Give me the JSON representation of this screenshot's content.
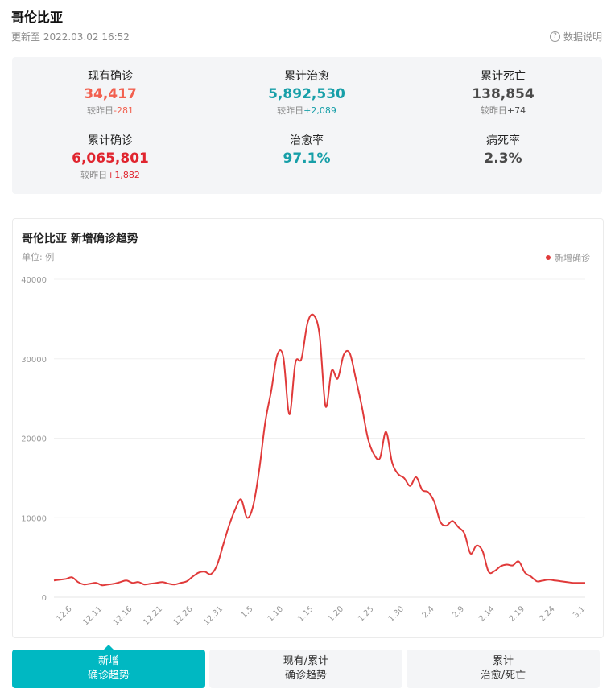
{
  "header": {
    "title": "哥伦比亚",
    "update_time": "更新至 2022.03.02 16:52",
    "help_label": "数据说明",
    "help_icon": "question-circle-icon"
  },
  "stats": [
    {
      "label": "现有确诊",
      "value": "34,417",
      "delta_prefix": "较昨日",
      "delta": "-281",
      "color": "#f2604f",
      "delta_color": "#f2604f"
    },
    {
      "label": "累计治愈",
      "value": "5,892,530",
      "delta_prefix": "较昨日",
      "delta": "+2,089",
      "color": "#179fa8",
      "delta_color": "#179fa8"
    },
    {
      "label": "累计死亡",
      "value": "138,854",
      "delta_prefix": "较昨日",
      "delta": "+74",
      "color": "#4a4a4a",
      "delta_color": "#4a4a4a"
    },
    {
      "label": "累计确诊",
      "value": "6,065,801",
      "delta_prefix": "较昨日",
      "delta": "+1,882",
      "color": "#e0252f",
      "delta_color": "#e0252f"
    },
    {
      "label": "治愈率",
      "value": "97.1%",
      "delta_prefix": "",
      "delta": "",
      "color": "#179fa8",
      "delta_color": "#179fa8"
    },
    {
      "label": "病死率",
      "value": "2.3%",
      "delta_prefix": "",
      "delta": "",
      "color": "#4a4a4a",
      "delta_color": "#4a4a4a"
    }
  ],
  "chart_panel": {
    "title": "哥伦比亚 新增确诊趋势",
    "unit": "单位: 例"
  },
  "chart_data": {
    "type": "line",
    "title": "哥伦比亚 新增确诊趋势",
    "ylabel": "单位: 例",
    "ylim": [
      0,
      40000
    ],
    "yticks": [
      "0",
      "10000",
      "20000",
      "30000",
      "40000"
    ],
    "xticks": [
      "12.6",
      "12.11",
      "12.16",
      "12.21",
      "12.26",
      "12.31",
      "1.5",
      "1.10",
      "1.15",
      "1.20",
      "1.25",
      "1.30",
      "2.4",
      "2.9",
      "2.14",
      "2.19",
      "2.24",
      "3.1"
    ],
    "grid": true,
    "legend_position": "top-right",
    "series": [
      {
        "name": "新增确诊",
        "color": "#e03a3a",
        "x": [
          "12.3",
          "12.4",
          "12.5",
          "12.6",
          "12.7",
          "12.8",
          "12.9",
          "12.10",
          "12.11",
          "12.12",
          "12.13",
          "12.14",
          "12.15",
          "12.16",
          "12.17",
          "12.18",
          "12.19",
          "12.20",
          "12.21",
          "12.22",
          "12.23",
          "12.24",
          "12.25",
          "12.26",
          "12.27",
          "12.28",
          "12.29",
          "12.30",
          "12.31",
          "1.1",
          "1.2",
          "1.3",
          "1.4",
          "1.5",
          "1.6",
          "1.7",
          "1.8",
          "1.9",
          "1.10",
          "1.11",
          "1.12",
          "1.13",
          "1.14",
          "1.15",
          "1.16",
          "1.17",
          "1.18",
          "1.19",
          "1.20",
          "1.21",
          "1.22",
          "1.23",
          "1.24",
          "1.25",
          "1.26",
          "1.27",
          "1.28",
          "1.29",
          "1.30",
          "1.31",
          "2.1",
          "2.2",
          "2.3",
          "2.4",
          "2.5",
          "2.6",
          "2.7",
          "2.8",
          "2.9",
          "2.10",
          "2.11",
          "2.12",
          "2.13",
          "2.14",
          "2.15",
          "2.16",
          "2.17",
          "2.18",
          "2.19",
          "2.20",
          "2.21",
          "2.22",
          "2.23",
          "2.24",
          "2.25",
          "2.26",
          "2.27",
          "2.28",
          "3.1"
        ],
        "values": [
          2100,
          2200,
          2300,
          2500,
          1900,
          1600,
          1700,
          1800,
          1500,
          1600,
          1700,
          1900,
          2100,
          1800,
          1900,
          1600,
          1700,
          1800,
          1900,
          1700,
          1600,
          1800,
          2000,
          2600,
          3100,
          3200,
          2900,
          4000,
          6500,
          9000,
          11000,
          12300,
          10000,
          11500,
          16000,
          22000,
          26000,
          30500,
          30200,
          23000,
          29500,
          30000,
          34500,
          35500,
          33000,
          24000,
          28500,
          27500,
          30500,
          30700,
          27500,
          24000,
          20000,
          18000,
          17500,
          20800,
          17000,
          15500,
          15000,
          14000,
          15100,
          13500,
          13200,
          12000,
          9500,
          9000,
          9600,
          8800,
          8000,
          5500,
          6500,
          5800,
          3200,
          3300,
          3900,
          4100,
          4000,
          4500,
          3100,
          2600,
          2000,
          2100,
          2200,
          2100,
          2000,
          1900,
          1800,
          1800,
          1800
        ]
      }
    ]
  },
  "tabs": [
    {
      "line1": "新增",
      "line2": "确诊趋势"
    },
    {
      "line1": "现有/累计",
      "line2": "确诊趋势"
    },
    {
      "line1": "累计",
      "line2": "治愈/死亡"
    }
  ]
}
